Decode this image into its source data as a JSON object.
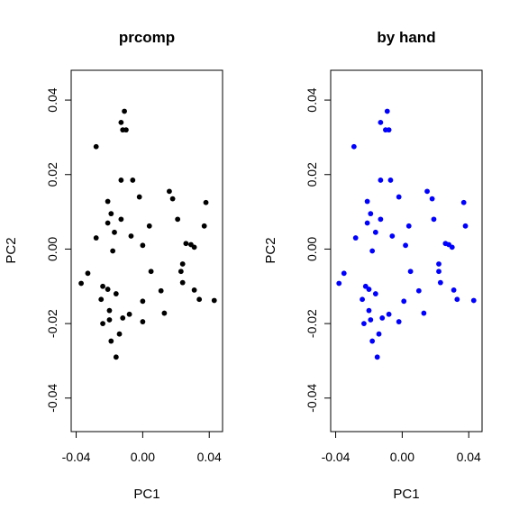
{
  "chart_data": [
    {
      "type": "scatter",
      "title": "prcomp",
      "xlabel": "PC1",
      "ylabel": "PC2",
      "xlim": [
        -0.043,
        0.048
      ],
      "ylim": [
        -0.049,
        0.048
      ],
      "xticks": [
        "-0.04",
        "0.00",
        "0.04"
      ],
      "yticks": [
        "-0.04",
        "-0.02",
        "0.00",
        "0.02",
        "0.04"
      ],
      "point_color": "#000000",
      "points": [
        [
          -0.011,
          0.037
        ],
        [
          -0.013,
          0.034
        ],
        [
          -0.012,
          0.032
        ],
        [
          -0.01,
          0.032
        ],
        [
          -0.028,
          0.0275
        ],
        [
          -0.013,
          0.0185
        ],
        [
          -0.006,
          0.0185
        ],
        [
          -0.002,
          0.014
        ],
        [
          0.016,
          0.0155
        ],
        [
          0.018,
          0.0135
        ],
        [
          0.038,
          0.0125
        ],
        [
          -0.021,
          0.0128
        ],
        [
          -0.019,
          0.0095
        ],
        [
          -0.013,
          0.008
        ],
        [
          -0.021,
          0.007
        ],
        [
          0.021,
          0.008
        ],
        [
          -0.007,
          0.0035
        ],
        [
          0.004,
          0.0062
        ],
        [
          -0.017,
          0.0045
        ],
        [
          -0.028,
          0.003
        ],
        [
          0.037,
          0.0062
        ],
        [
          -0.018,
          -0.0005
        ],
        [
          0.0,
          0.001
        ],
        [
          0.026,
          0.0015
        ],
        [
          0.029,
          0.0012
        ],
        [
          0.031,
          0.0005
        ],
        [
          0.024,
          -0.004
        ],
        [
          0.005,
          -0.006
        ],
        [
          -0.033,
          -0.0065
        ],
        [
          -0.037,
          -0.0092
        ],
        [
          0.023,
          -0.006
        ],
        [
          0.024,
          -0.009
        ],
        [
          -0.024,
          -0.01
        ],
        [
          -0.021,
          -0.0108
        ],
        [
          0.031,
          -0.011
        ],
        [
          0.011,
          -0.0112
        ],
        [
          -0.016,
          -0.012
        ],
        [
          -0.025,
          -0.0135
        ],
        [
          0.034,
          -0.0135
        ],
        [
          0.043,
          -0.0138
        ],
        [
          0.0,
          -0.014
        ],
        [
          -0.02,
          -0.0165
        ],
        [
          -0.008,
          -0.0175
        ],
        [
          0.013,
          -0.0172
        ],
        [
          -0.02,
          -0.019
        ],
        [
          -0.012,
          -0.0185
        ],
        [
          0.0,
          -0.0195
        ],
        [
          -0.024,
          -0.02
        ],
        [
          -0.014,
          -0.0228
        ],
        [
          -0.019,
          -0.0247
        ],
        [
          -0.016,
          -0.029
        ]
      ]
    },
    {
      "type": "scatter",
      "title": "by hand",
      "xlabel": "PC1",
      "ylabel": "PC2",
      "xlim": [
        -0.043,
        0.048
      ],
      "ylim": [
        -0.049,
        0.048
      ],
      "xticks": [
        "-0.04",
        "0.00",
        "0.04"
      ],
      "yticks": [
        "-0.04",
        "-0.02",
        "0.00",
        "0.02",
        "0.04"
      ],
      "point_color": "#0000ff",
      "points": [
        [
          -0.009,
          0.037
        ],
        [
          -0.013,
          0.034
        ],
        [
          -0.01,
          0.032
        ],
        [
          -0.008,
          0.032
        ],
        [
          -0.029,
          0.0275
        ],
        [
          -0.013,
          0.0185
        ],
        [
          -0.007,
          0.0185
        ],
        [
          -0.002,
          0.014
        ],
        [
          0.015,
          0.0155
        ],
        [
          0.018,
          0.0135
        ],
        [
          0.037,
          0.0125
        ],
        [
          -0.021,
          0.0128
        ],
        [
          -0.019,
          0.0095
        ],
        [
          -0.013,
          0.008
        ],
        [
          -0.021,
          0.007
        ],
        [
          0.019,
          0.008
        ],
        [
          -0.006,
          0.0035
        ],
        [
          0.004,
          0.0062
        ],
        [
          -0.016,
          0.0045
        ],
        [
          -0.028,
          0.003
        ],
        [
          0.038,
          0.0062
        ],
        [
          -0.018,
          -0.0005
        ],
        [
          0.002,
          0.001
        ],
        [
          0.026,
          0.0015
        ],
        [
          0.028,
          0.0012
        ],
        [
          0.03,
          0.0005
        ],
        [
          0.022,
          -0.004
        ],
        [
          0.005,
          -0.006
        ],
        [
          -0.035,
          -0.0065
        ],
        [
          -0.038,
          -0.0092
        ],
        [
          0.022,
          -0.006
        ],
        [
          0.023,
          -0.009
        ],
        [
          -0.022,
          -0.01
        ],
        [
          -0.02,
          -0.0108
        ],
        [
          0.031,
          -0.011
        ],
        [
          0.01,
          -0.0112
        ],
        [
          -0.016,
          -0.012
        ],
        [
          -0.024,
          -0.0135
        ],
        [
          0.033,
          -0.0135
        ],
        [
          0.043,
          -0.0138
        ],
        [
          0.001,
          -0.014
        ],
        [
          -0.02,
          -0.0165
        ],
        [
          -0.008,
          -0.0175
        ],
        [
          0.013,
          -0.0172
        ],
        [
          -0.019,
          -0.019
        ],
        [
          -0.012,
          -0.0185
        ],
        [
          -0.002,
          -0.0195
        ],
        [
          -0.023,
          -0.02
        ],
        [
          -0.014,
          -0.0228
        ],
        [
          -0.018,
          -0.0247
        ],
        [
          -0.015,
          -0.029
        ]
      ]
    }
  ]
}
